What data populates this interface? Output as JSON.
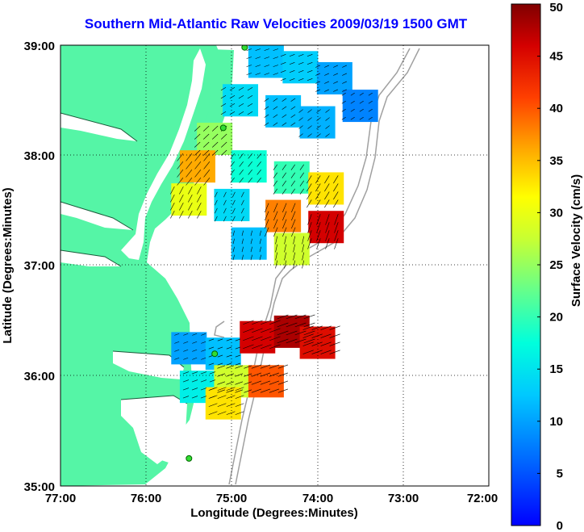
{
  "title": "Southern Mid-Atlantic Raw Velocities 2009/03/19 1500 GMT",
  "x_axis": {
    "label": "Longitude (Degrees:Minutes)",
    "ticks": [
      "77:00",
      "76:00",
      "75:00",
      "74:00",
      "73:00",
      "72:00"
    ]
  },
  "y_axis": {
    "label": "Latitude (Degrees:Minutes)",
    "ticks": [
      "39:00",
      "38:00",
      "37:00",
      "36:00",
      "35:00"
    ]
  },
  "colorbar": {
    "label": "Surface Velocity (cm/s)",
    "ticks": [
      "50",
      "45",
      "40",
      "35",
      "30",
      "25",
      "20",
      "15",
      "10",
      "5",
      "0"
    ],
    "colormap": "jet",
    "min": 0,
    "max": 50
  },
  "colors": {
    "land": "#55f5a6",
    "ocean": "#ffffff",
    "title": "#0000ff",
    "bathymetry": "#a0a0a0",
    "station": "#33dd33"
  },
  "chart_data": {
    "type": "heatmap",
    "map_extent": {
      "lon": [
        -77,
        -72
      ],
      "lat": [
        35,
        39
      ]
    },
    "grid": true,
    "velocity_regions": [
      {
        "name": "north",
        "cells": [
          {
            "lon": -74.6,
            "lat": 38.85,
            "v": 12
          },
          {
            "lon": -74.2,
            "lat": 38.8,
            "v": 13
          },
          {
            "lon": -73.8,
            "lat": 38.7,
            "v": 10
          },
          {
            "lon": -73.5,
            "lat": 38.45,
            "v": 8
          },
          {
            "lon": -74.9,
            "lat": 38.5,
            "v": 14
          },
          {
            "lon": -74.4,
            "lat": 38.4,
            "v": 12
          },
          {
            "lon": -74.0,
            "lat": 38.3,
            "v": 11
          },
          {
            "lon": -75.2,
            "lat": 38.15,
            "v": 25
          },
          {
            "lon": -75.4,
            "lat": 37.9,
            "v": 36
          },
          {
            "lon": -74.8,
            "lat": 37.9,
            "v": 18
          },
          {
            "lon": -74.3,
            "lat": 37.8,
            "v": 20
          },
          {
            "lon": -73.9,
            "lat": 37.7,
            "v": 33
          },
          {
            "lon": -75.5,
            "lat": 37.6,
            "v": 30
          },
          {
            "lon": -75.0,
            "lat": 37.55,
            "v": 14
          },
          {
            "lon": -74.4,
            "lat": 37.45,
            "v": 38
          },
          {
            "lon": -73.9,
            "lat": 37.35,
            "v": 46
          },
          {
            "lon": -74.8,
            "lat": 37.2,
            "v": 12
          },
          {
            "lon": -74.3,
            "lat": 37.15,
            "v": 28
          }
        ]
      },
      {
        "name": "south",
        "cells": [
          {
            "lon": -75.5,
            "lat": 36.25,
            "v": 10
          },
          {
            "lon": -75.1,
            "lat": 36.2,
            "v": 12
          },
          {
            "lon": -74.7,
            "lat": 36.35,
            "v": 46
          },
          {
            "lon": -74.3,
            "lat": 36.4,
            "v": 48
          },
          {
            "lon": -74.0,
            "lat": 36.3,
            "v": 45
          },
          {
            "lon": -75.4,
            "lat": 35.9,
            "v": 16
          },
          {
            "lon": -75.0,
            "lat": 35.95,
            "v": 28
          },
          {
            "lon": -74.6,
            "lat": 35.95,
            "v": 40
          },
          {
            "lon": -75.1,
            "lat": 35.75,
            "v": 33
          }
        ]
      }
    ],
    "stations": [
      {
        "lon": -74.85,
        "lat": 38.98
      },
      {
        "lon": -75.1,
        "lat": 38.25
      },
      {
        "lon": -75.2,
        "lat": 36.2
      },
      {
        "lon": -75.5,
        "lat": 35.25
      }
    ]
  }
}
